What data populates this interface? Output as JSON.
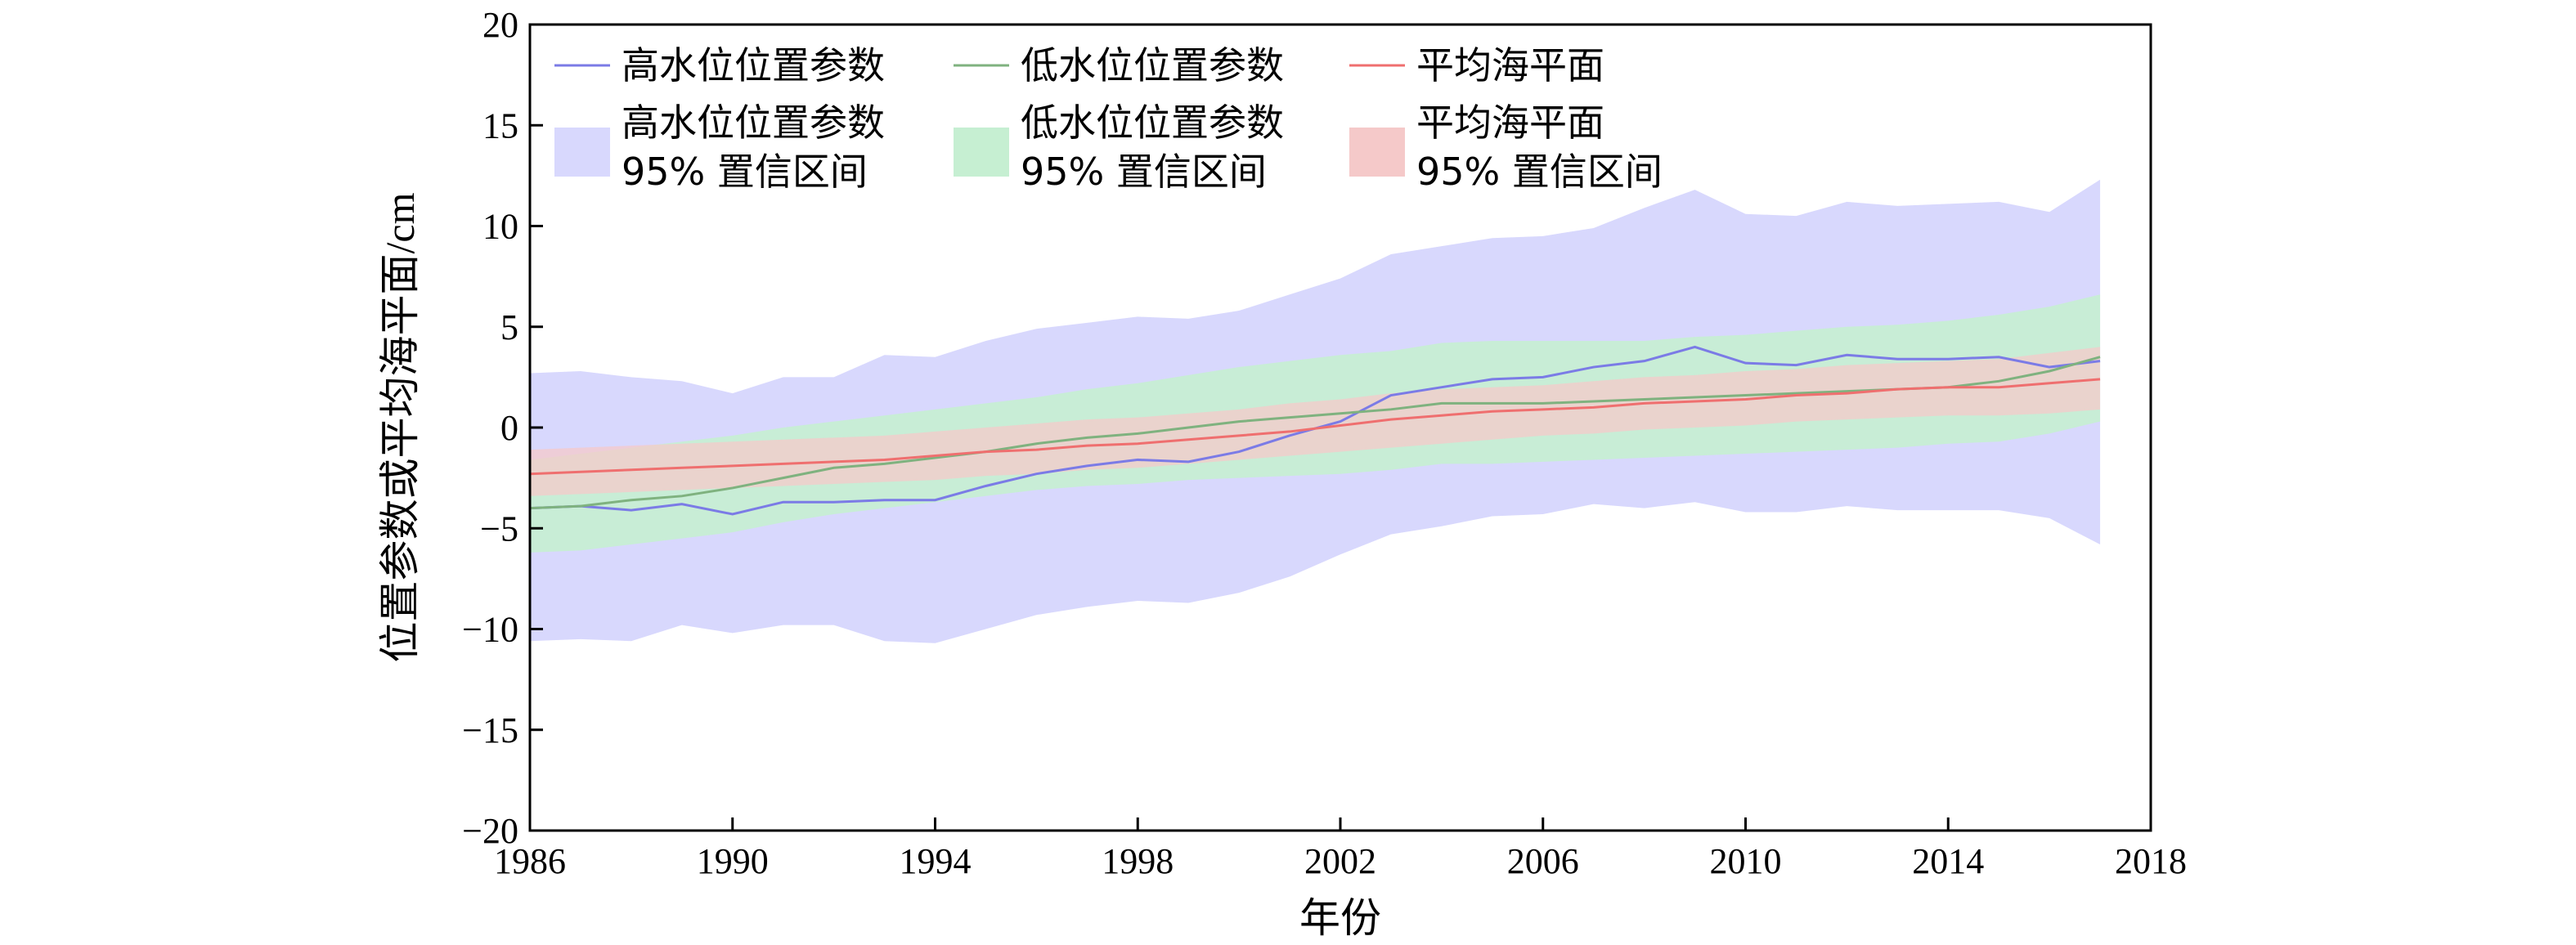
{
  "chart_data": {
    "type": "line",
    "title": "",
    "xlabel": "年份",
    "ylabel": "位置参数或平均海平面/cm",
    "xlim": [
      1986,
      2018
    ],
    "ylim": [
      -20,
      20
    ],
    "x_ticks": [
      "1986",
      "1990",
      "1994",
      "1998",
      "2002",
      "2006",
      "2010",
      "2014",
      "2018"
    ],
    "y_ticks": [
      "20",
      "15",
      "10",
      "5",
      "0",
      "−5",
      "−10",
      "−15",
      "−20"
    ],
    "grid": false,
    "legend_position": "top-left",
    "x": [
      1986,
      1987,
      1988,
      1989,
      1990,
      1991,
      1992,
      1993,
      1994,
      1995,
      1996,
      1997,
      1998,
      1999,
      2000,
      2001,
      2002,
      2003,
      2004,
      2005,
      2006,
      2007,
      2008,
      2009,
      2010,
      2011,
      2012,
      2013,
      2014,
      2015,
      2016,
      2017
    ],
    "series": [
      {
        "name": "高水位位置参数",
        "color": "#7b7be6",
        "values": [
          -4.0,
          -3.9,
          -4.1,
          -3.8,
          -4.3,
          -3.7,
          -3.7,
          -3.6,
          -3.6,
          -2.9,
          -2.3,
          -1.9,
          -1.6,
          -1.7,
          -1.2,
          -0.4,
          0.3,
          1.6,
          2.0,
          2.4,
          2.5,
          3.0,
          3.3,
          4.0,
          3.2,
          3.1,
          3.6,
          3.4,
          3.4,
          3.5,
          3.0,
          3.3
        ]
      },
      {
        "name": "低水位位置参数",
        "color": "#7fb27f",
        "values": [
          -4.0,
          -3.9,
          -3.6,
          -3.4,
          -3.0,
          -2.5,
          -2.0,
          -1.8,
          -1.5,
          -1.2,
          -0.8,
          -0.5,
          -0.3,
          0.0,
          0.3,
          0.5,
          0.7,
          0.9,
          1.2,
          1.2,
          1.2,
          1.3,
          1.4,
          1.5,
          1.6,
          1.7,
          1.8,
          1.9,
          2.0,
          2.3,
          2.8,
          3.5
        ]
      },
      {
        "name": "平均海平面",
        "color": "#ef6f6f",
        "values": [
          -2.3,
          -2.2,
          -2.1,
          -2.0,
          -1.9,
          -1.8,
          -1.7,
          -1.6,
          -1.4,
          -1.2,
          -1.1,
          -0.9,
          -0.8,
          -0.6,
          -0.4,
          -0.2,
          0.1,
          0.4,
          0.6,
          0.8,
          0.9,
          1.0,
          1.2,
          1.3,
          1.4,
          1.6,
          1.7,
          1.9,
          2.0,
          2.0,
          2.2,
          2.4
        ]
      }
    ],
    "bands": [
      {
        "name": "高水位位置参数\n95% 置信区间",
        "color": "#d8d8fd",
        "upper": [
          2.7,
          2.8,
          2.5,
          2.3,
          1.7,
          2.5,
          2.5,
          3.6,
          3.5,
          4.3,
          4.9,
          5.2,
          5.5,
          5.4,
          5.8,
          6.6,
          7.4,
          8.6,
          9.0,
          9.4,
          9.5,
          9.9,
          10.9,
          11.8,
          10.6,
          10.5,
          11.2,
          11.0,
          11.1,
          11.2,
          10.7,
          12.3
        ],
        "lower": [
          -10.6,
          -10.5,
          -10.6,
          -9.8,
          -10.2,
          -9.8,
          -9.8,
          -10.6,
          -10.7,
          -10.0,
          -9.3,
          -8.9,
          -8.6,
          -8.7,
          -8.2,
          -7.4,
          -6.3,
          -5.3,
          -4.9,
          -4.4,
          -4.3,
          -3.8,
          -4.0,
          -3.7,
          -4.2,
          -4.2,
          -3.9,
          -4.1,
          -4.1,
          -4.1,
          -4.5,
          -5.8
        ]
      },
      {
        "name": "低水位位置参数\n95% 置信区间",
        "color": "#c6efd2",
        "upper": [
          -1.6,
          -1.3,
          -1.0,
          -0.7,
          -0.4,
          0.0,
          0.3,
          0.6,
          0.9,
          1.2,
          1.5,
          1.9,
          2.2,
          2.6,
          3.0,
          3.3,
          3.6,
          3.8,
          4.2,
          4.3,
          4.3,
          4.3,
          4.3,
          4.5,
          4.6,
          4.8,
          5.0,
          5.1,
          5.3,
          5.6,
          6.0,
          6.6
        ],
        "lower": [
          -6.2,
          -6.1,
          -5.8,
          -5.5,
          -5.2,
          -4.7,
          -4.3,
          -4.0,
          -3.7,
          -3.4,
          -3.1,
          -2.9,
          -2.8,
          -2.6,
          -2.5,
          -2.4,
          -2.3,
          -2.1,
          -1.8,
          -1.8,
          -1.7,
          -1.6,
          -1.5,
          -1.4,
          -1.3,
          -1.2,
          -1.1,
          -1.0,
          -0.8,
          -0.7,
          -0.3,
          0.3
        ]
      },
      {
        "name": "平均海平面\n95% 置信区间",
        "color": "#f5c9c9",
        "upper": [
          -1.1,
          -1.0,
          -0.9,
          -0.8,
          -0.7,
          -0.6,
          -0.5,
          -0.4,
          -0.2,
          0.0,
          0.2,
          0.4,
          0.5,
          0.7,
          0.9,
          1.2,
          1.4,
          1.7,
          1.9,
          2.0,
          2.1,
          2.3,
          2.5,
          2.6,
          2.8,
          2.9,
          3.1,
          3.2,
          3.3,
          3.4,
          3.7,
          4.0
        ],
        "lower": [
          -3.4,
          -3.3,
          -3.2,
          -3.1,
          -3.0,
          -2.9,
          -2.8,
          -2.7,
          -2.6,
          -2.4,
          -2.3,
          -2.1,
          -2.0,
          -1.8,
          -1.6,
          -1.4,
          -1.2,
          -1.0,
          -0.8,
          -0.6,
          -0.4,
          -0.3,
          -0.1,
          0.0,
          0.1,
          0.3,
          0.4,
          0.5,
          0.6,
          0.6,
          0.7,
          0.9
        ]
      }
    ]
  }
}
